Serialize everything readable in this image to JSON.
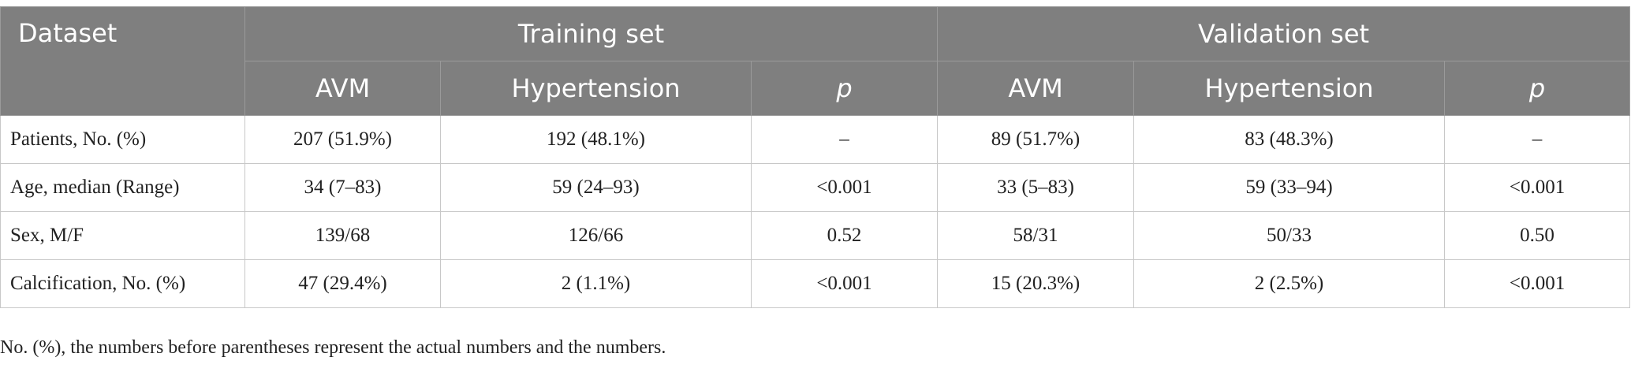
{
  "header": {
    "dataset": "Dataset",
    "training_set": "Training set",
    "validation_set": "Validation set",
    "columns": [
      "AVM",
      "Hypertension",
      "p",
      "AVM",
      "Hypertension",
      "p"
    ]
  },
  "table": {
    "rows": [
      [
        "Patients, No. (%)",
        "207 (51.9%)",
        "192 (48.1%)",
        "–",
        "89 (51.7%)",
        "83 (48.3%)",
        "–"
      ],
      [
        "Age, median (Range)",
        "34 (7–83)",
        "59 (24–93)",
        "<0.001",
        "33 (5–83)",
        "59 (33–94)",
        "<0.001"
      ],
      [
        "Sex, M/F",
        "139/68",
        "126/66",
        "0.52",
        "58/31",
        "50/33",
        "0.50"
      ],
      [
        "Calcification, No. (%)",
        "47 (29.4%)",
        "2 (1.1%)",
        "<0.001",
        "15 (20.3%)",
        "2 (2.5%)",
        "<0.001"
      ]
    ]
  },
  "footnote": "No. (%), the numbers before parentheses represent the actual numbers and the numbers."
}
